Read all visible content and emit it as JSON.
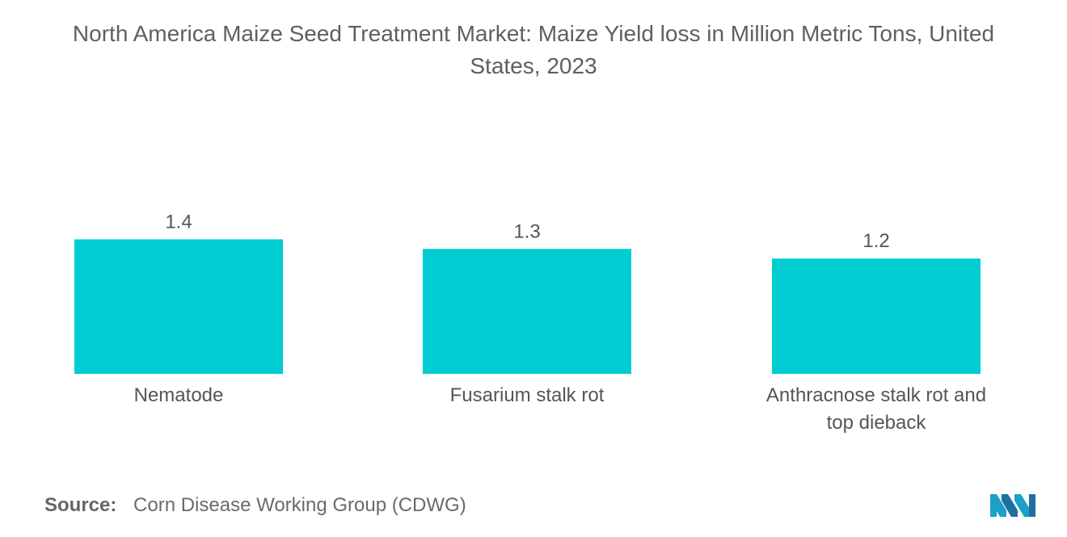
{
  "title_line1": "North America Maize Seed Treatment Market: Maize Yield loss in Million Metric Tons, United",
  "title_line2": "States, 2023",
  "source_label": "Source:",
  "source_text": "Corn Disease Working Group (CDWG)",
  "bar_color": "#00cdd1",
  "chart_data": {
    "type": "bar",
    "title": "North America Maize Seed Treatment Market: Maize Yield loss in Million Metric Tons, United States, 2023",
    "categories": [
      "Nematode",
      "Fusarium stalk rot",
      "Anthracnose stalk rot and top dieback"
    ],
    "values": [
      1.4,
      1.3,
      1.2
    ],
    "value_labels": [
      "1.4",
      "1.3",
      "1.2"
    ],
    "xlabel": "",
    "ylabel": "",
    "ylim": [
      0,
      1.4
    ],
    "grid": false,
    "legend": "none"
  }
}
